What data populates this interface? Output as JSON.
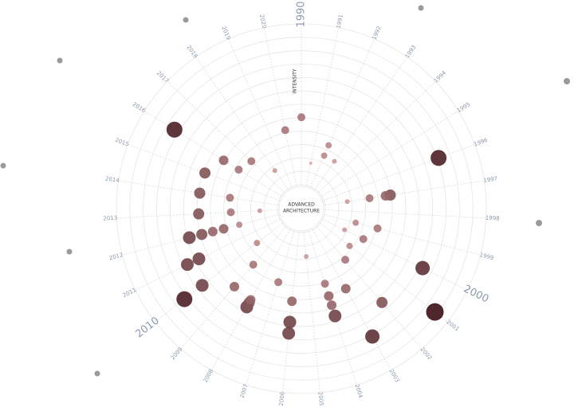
{
  "chart_data": {
    "type": "polar-bubble",
    "center_title": [
      "ADVANCED",
      "ARCHITECTURE"
    ],
    "y_label": "INTENSITY",
    "xlim": [
      1990,
      2021
    ],
    "xticks": [
      1990,
      1991,
      1992,
      1993,
      1994,
      1995,
      1996,
      1997,
      1998,
      1999,
      2000,
      2001,
      2002,
      2003,
      2004,
      2005,
      2006,
      2007,
      2008,
      2009,
      2010,
      2011,
      2012,
      2013,
      2014,
      2015,
      2016,
      2017,
      2018,
      2019,
      2020
    ],
    "major_xticks": [
      1990,
      2000,
      2010
    ],
    "ylim": [
      0,
      10
    ],
    "color_scale": [
      "#dcaaaa",
      "#3a0f14"
    ],
    "x": [
      1990,
      2020,
      2016,
      1996,
      1992,
      1992,
      1991,
      1993,
      1997,
      1997,
      1997,
      1997,
      1999,
      1999,
      2000,
      2000,
      2000,
      2001,
      2002,
      2003,
      2004,
      2004,
      2004,
      2003,
      2004,
      2002,
      2001,
      2006,
      2007,
      2006,
      2006,
      2008,
      2008,
      2008,
      2009,
      2010,
      2010,
      2011,
      2011,
      2012,
      2012,
      2012,
      2012,
      2013,
      2014,
      2015,
      2016,
      2016,
      2017,
      2014,
      2013,
      2012,
      2010,
      2009,
      2013,
      2018,
      2005
    ],
    "values": [
      4.2,
      3.5,
      7.8,
      7.6,
      2.8,
      2.1,
      1.4,
      2.1,
      4.1,
      3.8,
      2.8,
      1.4,
      3.4,
      2.0,
      2.8,
      1.5,
      6.9,
      9.0,
      6.2,
      7.6,
      5.5,
      4.8,
      4.2,
      4.2,
      3.4,
      2.7,
      2.3,
      4.3,
      3.3,
      6.3,
      5.6,
      5.5,
      5.2,
      5.0,
      4.9,
      6.3,
      7.7,
      6.4,
      5.6,
      5.7,
      4.9,
      4.2,
      3.5,
      4.9,
      4.9,
      4.9,
      4.2,
      3.1,
      2.8,
      3.0,
      2.9,
      2.5,
      2.0,
      3.1,
      1.1,
      1.4,
      1.5
    ],
    "sizes": [
      5,
      5,
      10,
      10,
      4,
      4,
      2,
      3,
      7,
      6,
      5,
      3,
      5,
      4,
      5,
      3,
      9,
      11,
      7,
      9,
      8,
      6,
      6,
      6,
      5,
      5,
      4,
      6,
      5,
      8,
      8,
      8,
      7,
      6,
      6,
      8,
      10,
      8,
      8,
      8,
      7,
      6,
      6,
      7,
      7,
      7,
      6,
      5,
      5,
      5,
      5,
      4,
      4,
      5,
      3,
      3,
      3
    ]
  }
}
